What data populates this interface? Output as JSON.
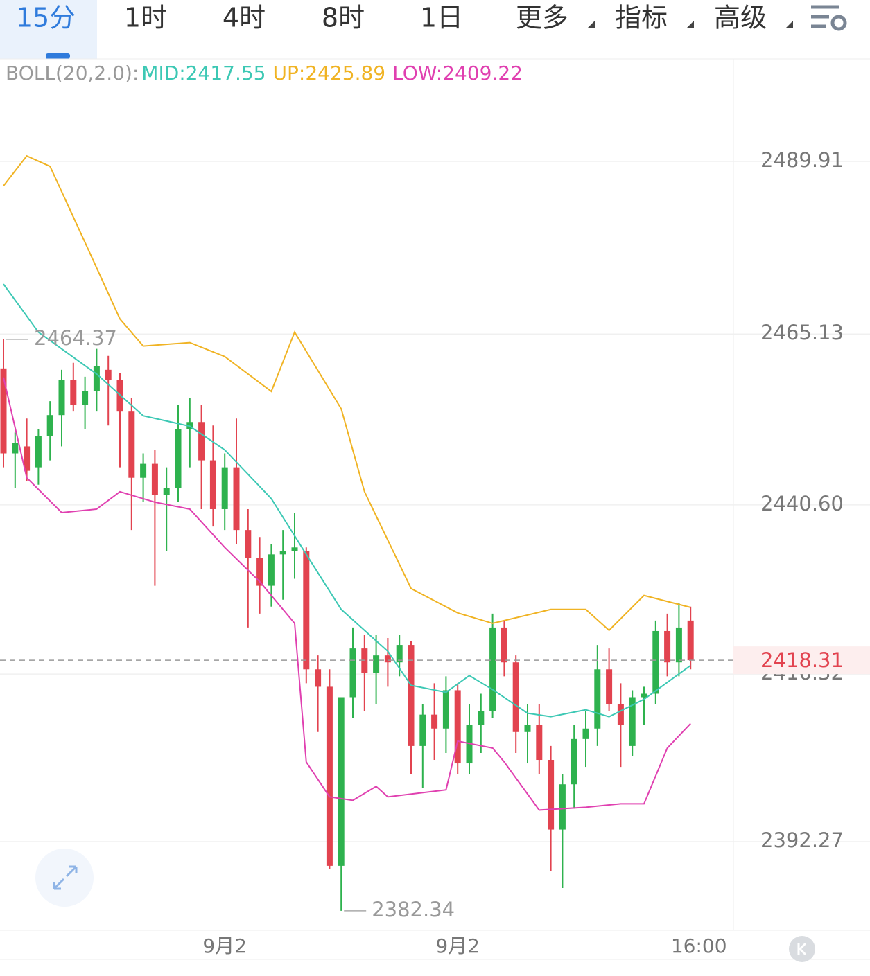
{
  "tabs": [
    "15分",
    "1时",
    "4时",
    "8时",
    "1日",
    "更多",
    "指标",
    "高级"
  ],
  "chart_data": {
    "type": "candlestick",
    "indicator": "BOLL(20,2.0):",
    "up_color": "#2eb24e",
    "down_color": "#e2434f",
    "ylim": [
      2379.54,
      2504.63
    ],
    "yticks": [
      {
        "value": 2489.91,
        "label": "2489.91"
      },
      {
        "value": 2465.13,
        "label": "2465.13"
      },
      {
        "value": 2440.6,
        "label": "2440.60"
      },
      {
        "value": 2416.32,
        "label": "2416.32"
      },
      {
        "value": 2392.27,
        "label": "2392.27"
      }
    ],
    "grid": true,
    "last_price": 2418.31,
    "max_label": 2464.37,
    "min_label": 2382.34,
    "categories": [
      null,
      null,
      null,
      null,
      null,
      null,
      null,
      null,
      null,
      null,
      null,
      null,
      null,
      null,
      null,
      null,
      null,
      null,
      null,
      "9月2",
      null,
      null,
      null,
      null,
      null,
      null,
      null,
      null,
      null,
      null,
      null,
      null,
      null,
      null,
      null,
      null,
      null,
      null,
      null,
      "9月2",
      null,
      null,
      null,
      null,
      null,
      null,
      null,
      null,
      null,
      null,
      null,
      null,
      null,
      null,
      null,
      null,
      null,
      null,
      null,
      "16:00"
    ],
    "ohlc": [
      [
        2460.2,
        2464.37,
        2446.0,
        2448.0
      ],
      [
        2448.0,
        2451.0,
        2443.0,
        2449.5
      ],
      [
        2449.0,
        2453.0,
        2444.0,
        2445.5
      ],
      [
        2446.0,
        2451.5,
        2443.5,
        2450.5
      ],
      [
        2450.5,
        2455.5,
        2447.0,
        2453.5
      ],
      [
        2453.5,
        2460.0,
        2449.0,
        2458.5
      ],
      [
        2458.5,
        2461.0,
        2454.0,
        2455.0
      ],
      [
        2455.0,
        2459.0,
        2451.5,
        2457.0
      ],
      [
        2457.0,
        2463.0,
        2454.0,
        2460.5
      ],
      [
        2460.0,
        2462.0,
        2452.0,
        2458.5
      ],
      [
        2458.5,
        2459.5,
        2446.0,
        2454.0
      ],
      [
        2454.0,
        2456.0,
        2437.0,
        2444.5
      ],
      [
        2444.5,
        2448.0,
        2441.0,
        2446.5
      ],
      [
        2446.5,
        2448.5,
        2429.0,
        2442.0
      ],
      [
        2442.0,
        2446.0,
        2434.0,
        2443.0
      ],
      [
        2443.0,
        2455.0,
        2441.0,
        2451.5
      ],
      [
        2451.5,
        2456.0,
        2446.0,
        2452.5
      ],
      [
        2452.5,
        2455.0,
        2440.0,
        2447.0
      ],
      [
        2447.0,
        2452.0,
        2437.5,
        2440.0
      ],
      [
        2440.0,
        2448.0,
        2437.0,
        2446.0
      ],
      [
        2446.0,
        2453.0,
        2435.0,
        2437.0
      ],
      [
        2437.0,
        2440.0,
        2423.0,
        2433.0
      ],
      [
        2433.0,
        2436.0,
        2425.0,
        2429.0
      ],
      [
        2429.0,
        2435.0,
        2426.0,
        2433.5
      ],
      [
        2433.5,
        2437.0,
        2427.0,
        2434.0
      ],
      [
        2434.0,
        2439.5,
        2430.0,
        2434.5
      ],
      [
        2434.0,
        2434.5,
        2415.0,
        2417.0
      ],
      [
        2417.0,
        2419.0,
        2408.0,
        2414.5
      ],
      [
        2414.5,
        2417.0,
        2388.3,
        2388.8
      ],
      [
        2388.8,
        2413.0,
        2382.34,
        2413.0
      ],
      [
        2413.0,
        2423.0,
        2410.0,
        2420.0
      ],
      [
        2420.0,
        2422.0,
        2411.0,
        2416.5
      ],
      [
        2416.5,
        2422.0,
        2412.0,
        2419.0
      ],
      [
        2419.0,
        2421.5,
        2414.5,
        2418.0
      ],
      [
        2418.0,
        2422.0,
        2416.0,
        2420.5
      ],
      [
        2420.5,
        2421.0,
        2402.0,
        2406.0
      ],
      [
        2406.0,
        2412.0,
        2400.0,
        2410.5
      ],
      [
        2410.5,
        2415.0,
        2404.0,
        2408.5
      ],
      [
        2408.5,
        2416.0,
        2405.0,
        2414.0
      ],
      [
        2414.0,
        2415.0,
        2402.0,
        2403.5
      ],
      [
        2403.5,
        2412.0,
        2402.0,
        2409.0
      ],
      [
        2409.0,
        2413.5,
        2405.0,
        2411.0
      ],
      [
        2411.0,
        2425.0,
        2410.0,
        2423.0
      ],
      [
        2423.0,
        2424.0,
        2416.0,
        2418.0
      ],
      [
        2418.0,
        2419.0,
        2405.0,
        2408.0
      ],
      [
        2408.0,
        2412.0,
        2403.5,
        2409.0
      ],
      [
        2409.0,
        2412.0,
        2402.0,
        2404.0
      ],
      [
        2404.0,
        2406.0,
        2388.0,
        2394.0
      ],
      [
        2394.0,
        2402.0,
        2385.6,
        2400.5
      ],
      [
        2400.5,
        2409.0,
        2397.0,
        2407.0
      ],
      [
        2407.0,
        2411.0,
        2403.0,
        2408.5
      ],
      [
        2408.5,
        2420.5,
        2406.0,
        2417.0
      ],
      [
        2417.0,
        2420.0,
        2411.0,
        2412.0
      ],
      [
        2412.0,
        2415.0,
        2403.0,
        2409.0
      ],
      [
        2406.0,
        2414.0,
        2404.5,
        2413.0
      ],
      [
        2413.0,
        2414.5,
        2409.0,
        2413.5
      ],
      [
        2413.5,
        2424.0,
        2412.0,
        2422.5
      ],
      [
        2422.5,
        2425.0,
        2416.0,
        2418.0
      ],
      [
        2418.0,
        2426.5,
        2416.0,
        2423.0
      ],
      [
        2424.0,
        2426.0,
        2417.0,
        2418.31
      ]
    ],
    "series": [
      {
        "name": "MID:2417.55",
        "color": "#3cc8b4",
        "x": [
          0,
          3,
          8,
          12,
          16,
          19,
          23,
          26,
          29,
          33,
          35,
          38,
          40,
          42,
          45,
          47,
          50,
          52,
          55,
          59
        ],
        "values": [
          2472.3,
          2465.4,
          2459.4,
          2453.4,
          2451.9,
          2448.5,
          2441.5,
          2433.5,
          2425.6,
          2419.6,
          2414.7,
          2413.7,
          2416.1,
          2414.1,
          2410.7,
          2410.2,
          2411.2,
          2410.2,
          2412.7,
          2417.55
        ]
      },
      {
        "name": "UP:2425.89",
        "color": "#f0b323",
        "x": [
          0,
          2,
          4,
          7,
          10,
          12,
          16,
          19,
          23,
          25,
          29,
          31,
          35,
          39,
          42,
          47,
          50,
          52,
          55,
          59
        ],
        "values": [
          2486.4,
          2490.7,
          2489.2,
          2478.3,
          2467.3,
          2463.4,
          2463.9,
          2461.9,
          2456.9,
          2465.4,
          2454.4,
          2442.5,
          2428.6,
          2425.1,
          2423.6,
          2425.6,
          2425.6,
          2422.6,
          2427.6,
          2425.89
        ]
      },
      {
        "name": "LOW:2409.22",
        "color": "#e040b0",
        "x": [
          0,
          2,
          5,
          8,
          10,
          13,
          16,
          19,
          22,
          25,
          26,
          28,
          30,
          32,
          33,
          38,
          39,
          42,
          43,
          46,
          50,
          53,
          55,
          57,
          59
        ],
        "values": [
          2458.9,
          2444.5,
          2439.5,
          2440.0,
          2442.5,
          2441.0,
          2440.0,
          2434.5,
          2429.6,
          2423.6,
          2403.7,
          2398.7,
          2398.2,
          2400.2,
          2398.7,
          2399.7,
          2406.7,
          2405.7,
          2403.7,
          2396.8,
          2397.2,
          2397.7,
          2397.7,
          2405.7,
          2409.22
        ]
      }
    ]
  }
}
